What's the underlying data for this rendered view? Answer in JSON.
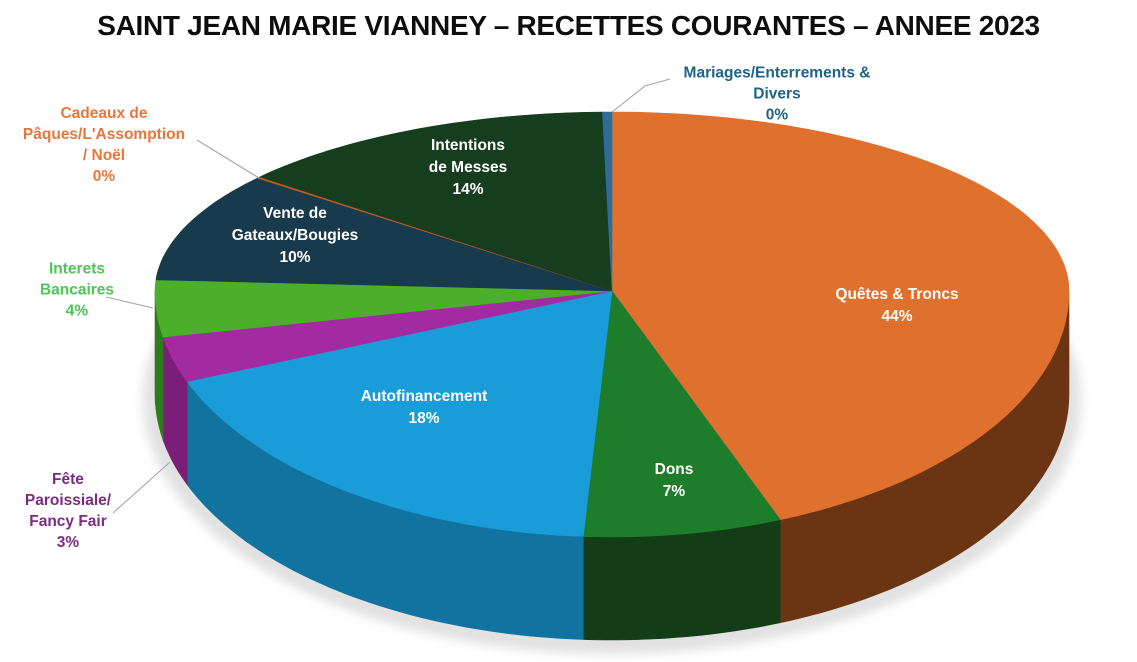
{
  "title": "SAINT JEAN MARIE VIANNEY – RECETTES COURANTES – ANNEE 2023",
  "chart_data": {
    "type": "pie",
    "style": "3d",
    "title": "SAINT JEAN MARIE VIANNEY – RECETTES COURANTES – ANNEE 2023",
    "unit": "%",
    "total": 100,
    "direction": "clockwise",
    "start_angle_deg": 0,
    "background": "#FFFFFF",
    "title_color": "#0D0D0D",
    "leader_line_color": "#A6A6A6",
    "slices": [
      {
        "label": "Quêtes & Troncs",
        "value": 44,
        "color": "#E0702D",
        "side_color": "#6B3413",
        "text_lines": [
          "Quêtes & Troncs",
          "44%"
        ],
        "label_style": "inside",
        "label_color": "#FFFFFF"
      },
      {
        "label": "Dons",
        "value": 7,
        "color": "#1E7D2B",
        "side_color": "#123D16",
        "text_lines": [
          "Dons",
          "7%"
        ],
        "label_style": "inside",
        "label_color": "#FFFFFF"
      },
      {
        "label": "Autofinancement",
        "value": 18,
        "color": "#199CD8",
        "side_color": "#1173A0",
        "text_lines": [
          "Autofinancement",
          "18%"
        ],
        "label_style": "inside",
        "label_color": "#FFFFFF"
      },
      {
        "label": "Fête Paroissiale/Fancy Fair",
        "value": 3,
        "color": "#A32BA2",
        "side_color": "#7A1E78",
        "text_lines": [
          "Fête",
          "Paroissiale/",
          "Fancy Fair",
          "3%"
        ],
        "label_style": "outside",
        "label_color": "#7D2B80"
      },
      {
        "label": "Interets Bancaires",
        "value": 4,
        "color": "#4CAF2C",
        "side_color": "#2F7A1E",
        "text_lines": [
          "Interets",
          "Bancaires",
          "4%"
        ],
        "label_style": "outside",
        "label_color": "#4DC655"
      },
      {
        "label": "Vente de Gateaux/Bougies",
        "value": 10,
        "color": "#183A4D",
        "side_color": "#0F2735",
        "text_lines": [
          "Vente de",
          "Gateaux/Bougies",
          "10%"
        ],
        "label_style": "inside",
        "label_color": "#FFFFFF"
      },
      {
        "label": "Cadeaux de Pâques/L'Assomption / Noël",
        "value": 0,
        "color": "#C45A1F",
        "side_color": "#8A3D12",
        "text_lines": [
          "Cadeaux de",
          "Pâques/L'Assomption",
          "/ Noël",
          "0%"
        ],
        "label_style": "outside",
        "label_color": "#E8763A"
      },
      {
        "label": "Intentions de Messes",
        "value": 14,
        "color": "#163E1E",
        "side_color": "#0D2612",
        "text_lines": [
          "Intentions",
          "de Messes",
          "14%"
        ],
        "label_style": "inside",
        "label_color": "#FFFFFF"
      },
      {
        "label": "Mariages/Enterrements & Divers",
        "value": 0,
        "color": "#2C6D9E",
        "side_color": "#1C4869",
        "text_lines": [
          "Mariages/Enterrements &",
          "Divers",
          "0%"
        ],
        "label_style": "outside",
        "label_color": "#1F6386"
      }
    ]
  }
}
